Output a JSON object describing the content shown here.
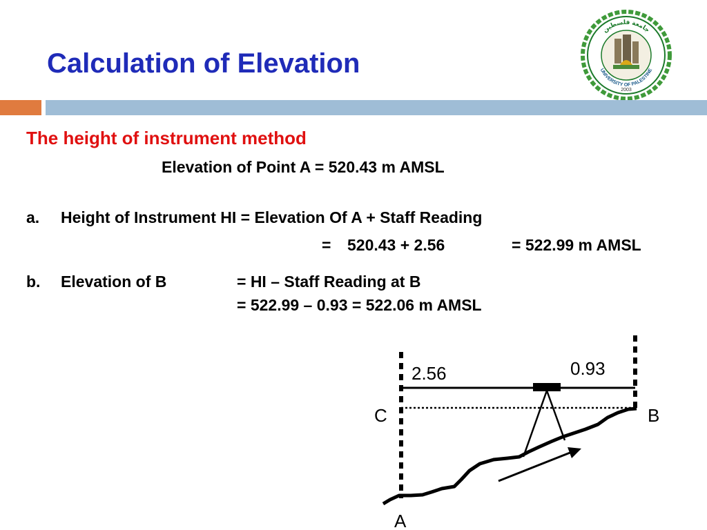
{
  "slide": {
    "title": "Calculation of Elevation",
    "subtitle": "The height of instrument method",
    "given": "Elevation of Point A = 520.43 m AMSL",
    "step_a": {
      "marker": "a.",
      "line1": "Height of Instrument HI = Elevation Of A + Staff Reading",
      "line2_eq": "=",
      "line2_expr": "520.43 + 2.56",
      "line2_result": "= 522.99 m AMSL"
    },
    "step_b": {
      "marker": "b.",
      "label": "Elevation of B",
      "line1": "= HI – Staff Reading at B",
      "line2": "= 522.99 – 0.93 = 522.06 m AMSL"
    }
  },
  "logo": {
    "text": "UNIVERSITY OF PALESTINE",
    "arabic": "جامعة فلسطين",
    "year": "2003"
  },
  "diagram": {
    "reading_a": "2.56",
    "reading_b": "0.93",
    "label_c": "C",
    "label_b": "B",
    "label_a": "A"
  },
  "colors": {
    "title": "#1f2bb8",
    "subtitle": "#e01010",
    "accent_orange": "#e07b3f",
    "accent_blue": "#9fbdd6"
  }
}
